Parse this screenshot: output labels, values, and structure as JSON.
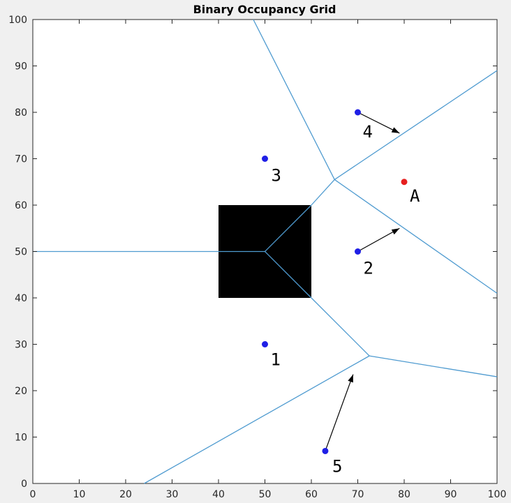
{
  "chart_data": {
    "type": "scatter",
    "title": "Binary Occupancy Grid",
    "xlabel": "",
    "ylabel": "",
    "xlim": [
      0,
      100
    ],
    "ylim": [
      0,
      100
    ],
    "grid": false,
    "x_ticks": [
      0,
      10,
      20,
      30,
      40,
      50,
      60,
      70,
      80,
      90,
      100
    ],
    "y_ticks": [
      0,
      10,
      20,
      30,
      40,
      50,
      60,
      70,
      80,
      90,
      100
    ],
    "obstacle": {
      "x_range": [
        40,
        60
      ],
      "y_range": [
        40,
        60
      ],
      "color": "#000000"
    },
    "points": [
      {
        "label": "1",
        "x": 50,
        "y": 30,
        "color": "#1f1fe6"
      },
      {
        "label": "2",
        "x": 70,
        "y": 50,
        "color": "#1f1fe6"
      },
      {
        "label": "3",
        "x": 50,
        "y": 70,
        "color": "#1f1fe6"
      },
      {
        "label": "4",
        "x": 70,
        "y": 80,
        "color": "#1f1fe6"
      },
      {
        "label": "5",
        "x": 63,
        "y": 7,
        "color": "#1f1fe6"
      },
      {
        "label": "A",
        "x": 80,
        "y": 65,
        "color": "#e61f1f"
      }
    ],
    "voronoi_edges": [
      [
        [
          0,
          50
        ],
        [
          50,
          50
        ]
      ],
      [
        [
          50,
          50
        ],
        [
          60,
          40
        ]
      ],
      [
        [
          50,
          50
        ],
        [
          60,
          60
        ]
      ],
      [
        [
          60,
          60
        ],
        [
          65,
          65.5
        ]
      ],
      [
        [
          60,
          40
        ],
        [
          72.5,
          27.5
        ]
      ],
      [
        [
          65,
          65.5
        ],
        [
          47.5,
          100
        ]
      ],
      [
        [
          65,
          65.5
        ],
        [
          100,
          89
        ]
      ],
      [
        [
          65,
          65.5
        ],
        [
          100,
          41
        ]
      ],
      [
        [
          72.5,
          27.5
        ],
        [
          100,
          23
        ]
      ],
      [
        [
          72.5,
          27.5
        ],
        [
          24,
          0
        ]
      ]
    ],
    "arrows": [
      {
        "from": [
          70,
          80
        ],
        "to": [
          79,
          75.5
        ]
      },
      {
        "from": [
          70,
          50
        ],
        "to": [
          79,
          55
        ]
      },
      {
        "from": [
          63,
          7
        ],
        "to": [
          69,
          23.5
        ]
      }
    ],
    "edge_color": "#4f9bd0",
    "arrow_color": "#000000"
  }
}
